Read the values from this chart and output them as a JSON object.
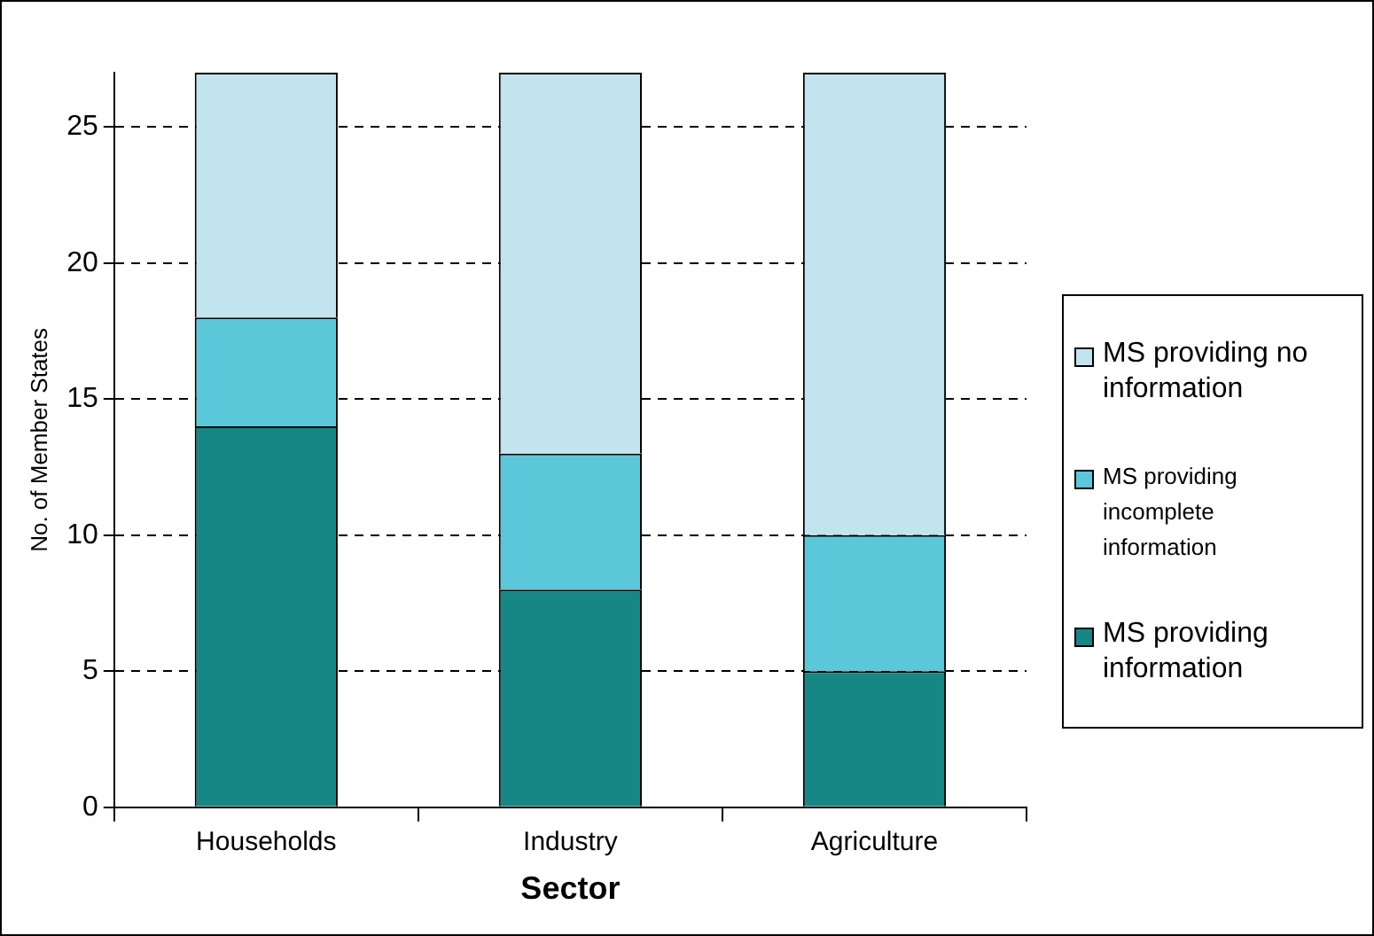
{
  "chart_data": {
    "type": "bar",
    "stacked": true,
    "xlabel": "Sector",
    "ylabel": "No. of Member States",
    "categories": [
      "Households",
      "Industry",
      "Agriculture"
    ],
    "series": [
      {
        "name": "MS providing information",
        "color": "#168784",
        "values": [
          14,
          8,
          5
        ]
      },
      {
        "name": "MS providing incomplete information",
        "color": "#5bc8da",
        "values": [
          4,
          5,
          5
        ]
      },
      {
        "name": "MS providing no information",
        "color": "#c1e4ef",
        "values": [
          9,
          14,
          17
        ]
      }
    ],
    "ylim": [
      0,
      27
    ],
    "yticks": [
      0,
      5,
      10,
      15,
      20,
      25
    ],
    "grid": "y",
    "legend": "right",
    "line_style": "dashed"
  }
}
